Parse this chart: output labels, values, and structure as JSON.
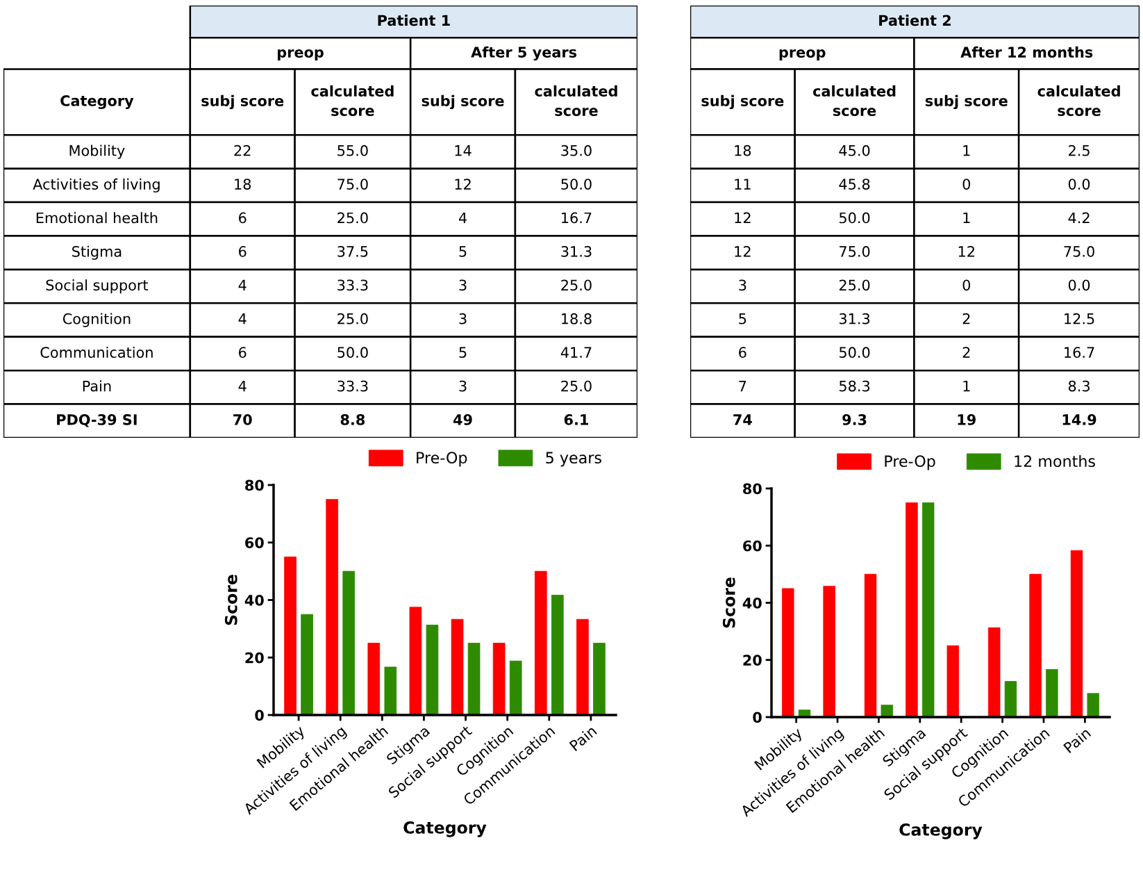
{
  "chart_data": [
    {
      "type": "other",
      "title": "Patient 1",
      "annotations": [
        "preop",
        "After 5 years",
        "Category",
        "subj score",
        "calculated score",
        "subj score",
        "calculated score",
        "Mobility",
        "22",
        "55.0",
        "14",
        "35.0",
        "Activities of living",
        "18",
        "75.0",
        "12",
        "50.0",
        "Emotional health",
        "6",
        "25.0",
        "4",
        "16.7",
        "Stigma",
        "6",
        "37.5",
        "5",
        "31.3",
        "Social support",
        "4",
        "33.3",
        "3",
        "25.0",
        "Cognition",
        "4",
        "25.0",
        "3",
        "18.8",
        "Communication",
        "6",
        "50.0",
        "5",
        "41.7",
        "Pain",
        "4",
        "33.3",
        "3",
        "25.0",
        "PDQ-39 SI",
        "70",
        "8.8",
        "49",
        "6.1"
      ]
    },
    {
      "type": "other",
      "title": "Patient 2",
      "annotations": [
        "preop",
        "After 12 months",
        "subj score",
        "calculated score",
        "subj score",
        "calculated score",
        "18",
        "45.0",
        "1",
        "2.5",
        "11",
        "45.8",
        "0",
        "0.0",
        "12",
        "50.0",
        "1",
        "4.2",
        "12",
        "75.0",
        "12",
        "75.0",
        "3",
        "25.0",
        "0",
        "0.0",
        "5",
        "31.3",
        "2",
        "12.5",
        "6",
        "50.0",
        "2",
        "16.7",
        "7",
        "58.3",
        "1",
        "8.3",
        "74",
        "9.3",
        "19",
        "14.9"
      ]
    },
    {
      "type": "bar",
      "xlabel": "Category",
      "ylabel": "Score",
      "ylim": [
        0,
        80
      ],
      "yticks": [
        0,
        20,
        40,
        60,
        80
      ],
      "legend": "top right",
      "grid": false,
      "categories": [
        "Mobility",
        "Activities of living",
        "Emotional health",
        "Stigma",
        "Social support",
        "Cognition",
        "Communication",
        "Pain"
      ],
      "series": [
        {
          "name": "Pre-Op",
          "color": "#ff0000",
          "values": [
            55.0,
            75.0,
            25.0,
            37.5,
            33.3,
            25.0,
            50.0,
            33.3
          ]
        },
        {
          "name": "5 years",
          "color": "#2e8b00",
          "values": [
            35.0,
            50.0,
            16.7,
            31.3,
            25.0,
            18.8,
            41.7,
            25.0
          ]
        }
      ]
    },
    {
      "type": "bar",
      "xlabel": "Category",
      "ylabel": "Score",
      "ylim": [
        0,
        80
      ],
      "yticks": [
        0,
        20,
        40,
        60,
        80
      ],
      "legend": "top right",
      "grid": false,
      "categories": [
        "Mobility",
        "Activities of living",
        "Emotional health",
        "Stigma",
        "Social support",
        "Cognition",
        "Communication",
        "Pain"
      ],
      "series": [
        {
          "name": "Pre-Op",
          "color": "#ff0000",
          "values": [
            45.0,
            45.8,
            50.0,
            75.0,
            25.0,
            31.3,
            50.0,
            58.3
          ]
        },
        {
          "name": "12 months",
          "color": "#2e8b00",
          "values": [
            2.5,
            0.0,
            4.2,
            75.0,
            0.0,
            12.5,
            16.7,
            8.3
          ]
        }
      ]
    }
  ]
}
